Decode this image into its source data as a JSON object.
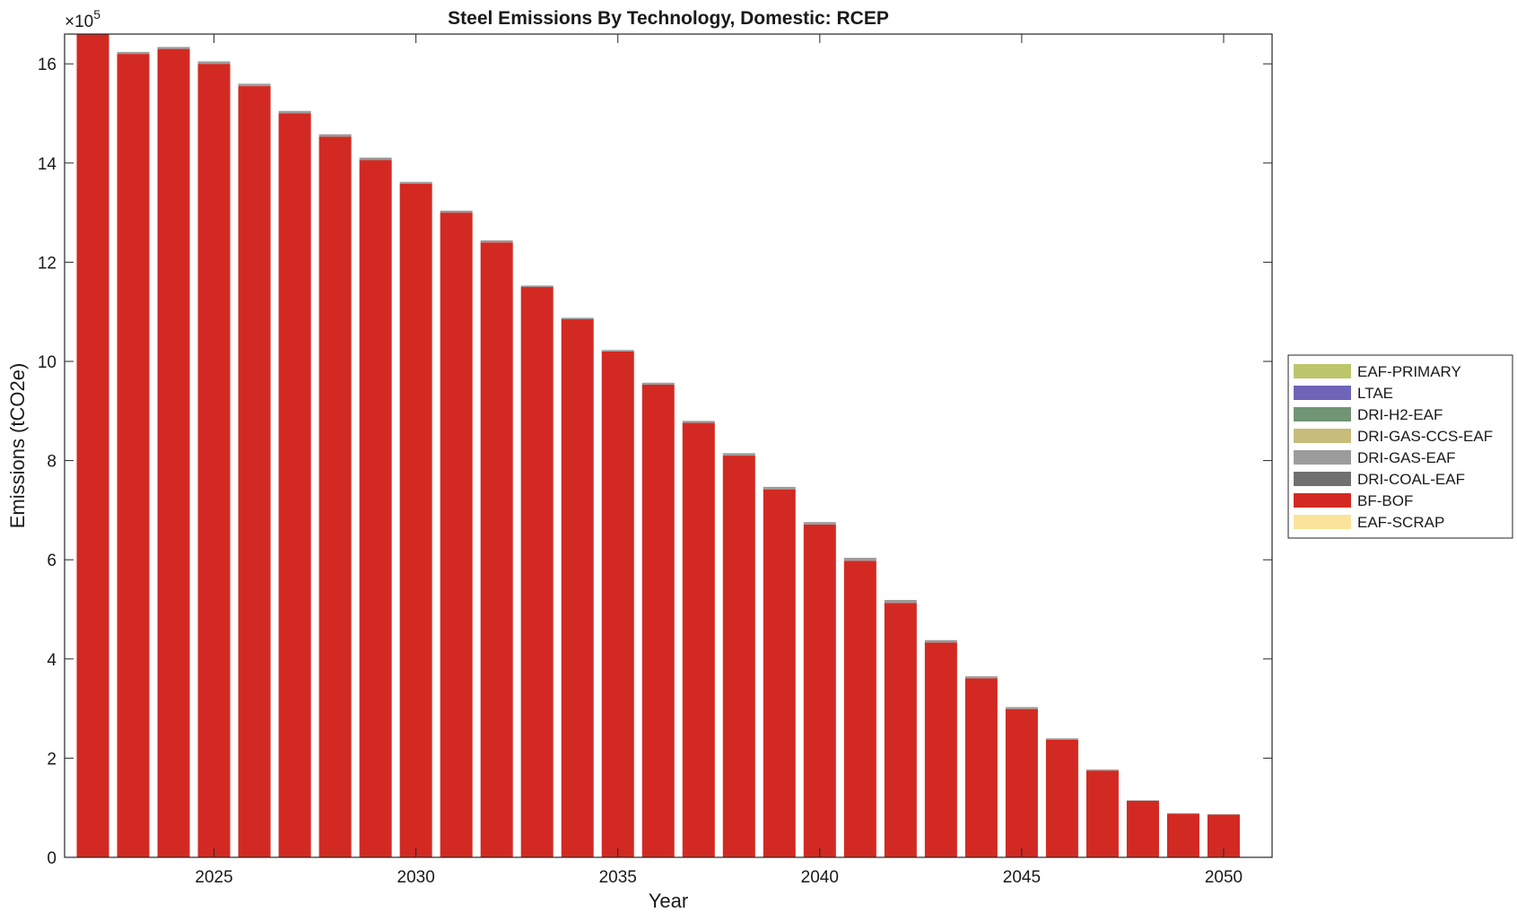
{
  "chart_data": {
    "type": "bar",
    "stacked": true,
    "title": "Steel Emissions By Technology, Domestic: RCEP",
    "xlabel": "Year",
    "ylabel": "Emissions (tCO2e)",
    "y_exponent_label": "×10",
    "y_exponent_power": "5",
    "y_scale_factor": 100000,
    "xlim": [
      2021.3,
      2051.2
    ],
    "ylim": [
      0,
      1660000
    ],
    "xticks": [
      2025,
      2030,
      2035,
      2040,
      2045,
      2050
    ],
    "yticks": [
      0,
      2,
      4,
      6,
      8,
      10,
      12,
      14,
      16
    ],
    "grid": false,
    "legend_position": "right",
    "legend": [
      "EAF-PRIMARY",
      "LTAE",
      "DRI-H2-EAF",
      "DRI-GAS-CCS-EAF",
      "DRI-GAS-EAF",
      "DRI-COAL-EAF",
      "BF-BOF",
      "EAF-SCRAP"
    ],
    "categories": [
      2022,
      2023,
      2024,
      2025,
      2026,
      2027,
      2028,
      2029,
      2030,
      2031,
      2032,
      2033,
      2034,
      2035,
      2036,
      2037,
      2038,
      2039,
      2040,
      2041,
      2042,
      2043,
      2044,
      2045,
      2046,
      2047,
      2048,
      2049,
      2050
    ],
    "series": [
      {
        "name": "EAF-SCRAP",
        "color": "#FBE39B",
        "values": [
          0,
          0,
          0,
          0,
          0,
          0,
          0,
          0,
          0,
          0,
          0,
          0,
          0,
          0,
          0,
          0,
          0,
          0,
          0,
          0,
          0,
          0,
          0,
          0,
          0,
          0,
          0,
          0,
          0
        ]
      },
      {
        "name": "BF-BOF",
        "color": "#D22A22",
        "values": [
          1660000,
          1620000,
          1630000,
          1600000,
          1555000,
          1500000,
          1453000,
          1406000,
          1358000,
          1300000,
          1240000,
          1150000,
          1085000,
          1020000,
          953000,
          876000,
          810000,
          742000,
          671000,
          598000,
          513000,
          433000,
          361000,
          299000,
          237000,
          175000,
          114000,
          88000,
          86000
        ]
      },
      {
        "name": "DRI-COAL-EAF",
        "color": "#707070",
        "values": [
          0,
          0,
          0,
          0,
          0,
          0,
          0,
          0,
          0,
          0,
          0,
          0,
          0,
          0,
          0,
          0,
          0,
          0,
          0,
          0,
          0,
          0,
          0,
          0,
          0,
          0,
          0,
          0,
          0
        ]
      },
      {
        "name": "DRI-GAS-EAF",
        "color": "#9C9C9C",
        "values": [
          0,
          4000,
          4000,
          5000,
          5000,
          5000,
          5000,
          5000,
          4000,
          4000,
          4000,
          3000,
          3000,
          3000,
          4000,
          4000,
          5000,
          5000,
          5000,
          6000,
          6000,
          5000,
          4000,
          4000,
          3000,
          2000,
          1000,
          1000,
          1000
        ]
      },
      {
        "name": "DRI-GAS-CCS-EAF",
        "color": "#C7BC7A",
        "values": [
          0,
          0,
          0,
          0,
          0,
          0,
          0,
          0,
          0,
          0,
          0,
          0,
          0,
          0,
          0,
          0,
          0,
          0,
          0,
          0,
          0,
          0,
          0,
          0,
          0,
          0,
          0,
          0,
          0
        ]
      },
      {
        "name": "DRI-H2-EAF",
        "color": "#6F9574",
        "values": [
          0,
          0,
          0,
          0,
          0,
          0,
          0,
          0,
          0,
          0,
          0,
          0,
          0,
          0,
          0,
          0,
          0,
          0,
          0,
          0,
          0,
          0,
          0,
          0,
          0,
          0,
          0,
          0,
          0
        ]
      },
      {
        "name": "LTAE",
        "color": "#6E64B8",
        "values": [
          0,
          0,
          0,
          0,
          0,
          0,
          0,
          0,
          0,
          0,
          0,
          0,
          0,
          0,
          0,
          0,
          0,
          0,
          0,
          0,
          0,
          0,
          0,
          0,
          0,
          0,
          0,
          0,
          0
        ]
      },
      {
        "name": "EAF-PRIMARY",
        "color": "#BDC66A",
        "values": [
          0,
          0,
          0,
          0,
          0,
          0,
          0,
          0,
          0,
          0,
          0,
          0,
          0,
          0,
          0,
          0,
          0,
          0,
          0,
          0,
          0,
          0,
          0,
          0,
          0,
          0,
          0,
          0,
          0
        ]
      }
    ]
  }
}
